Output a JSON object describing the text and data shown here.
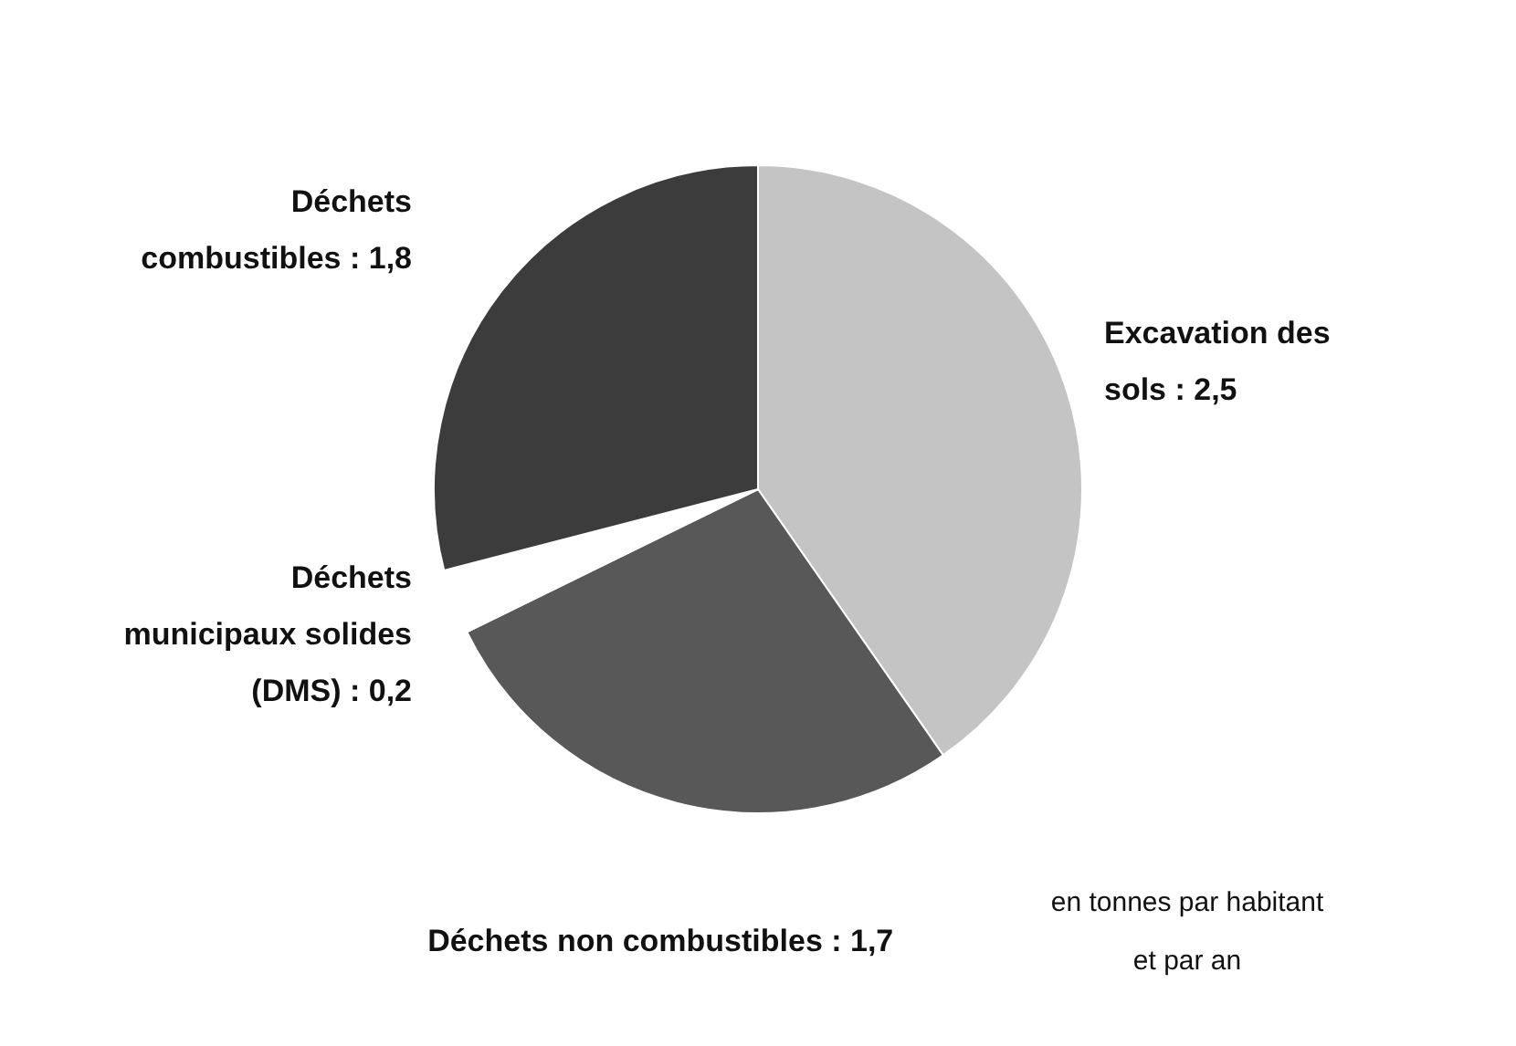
{
  "chart_data": {
    "type": "pie",
    "categories": [
      "Excavation des sols",
      "Déchets non combustibles",
      "Déchets municipaux solides (DMS)",
      "Déchets combustibles"
    ],
    "values": [
      2.5,
      1.7,
      0.2,
      1.8
    ],
    "value_labels": [
      "2,5",
      "1,7",
      "0,2",
      "1,8"
    ],
    "colors": [
      "#c4c4c4",
      "#585858",
      "#ffffff",
      "#3c3c3c"
    ],
    "legend": false,
    "annotations": [
      "en tonnes par habitant et par an"
    ]
  }
}
